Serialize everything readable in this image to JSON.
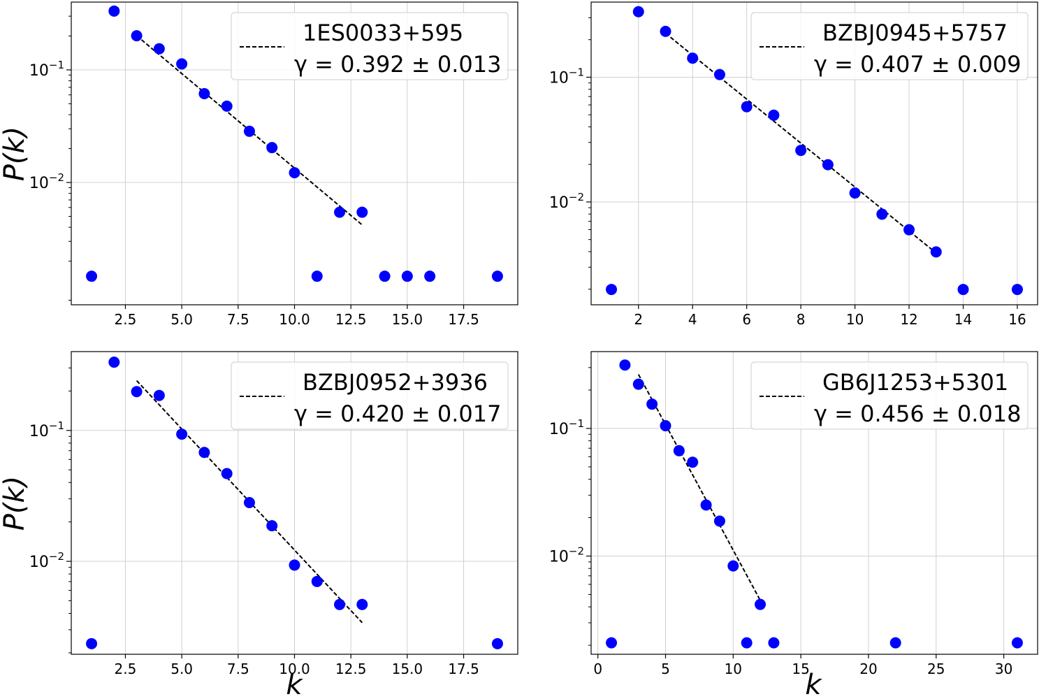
{
  "figure": {
    "xlabel": "k",
    "ylabel": "P(k)"
  },
  "chart_data": [
    {
      "type": "scatter",
      "legend_label": "1ES0033+595",
      "gamma_text": "γ = 0.392 ± 0.013",
      "legend_position": "top-right",
      "x_scale": "linear",
      "y_scale": "log",
      "xlim": [
        0.1,
        19.9
      ],
      "ylim": [
        0.00082,
        0.4
      ],
      "xticks": [
        2.5,
        5.0,
        7.5,
        10.0,
        12.5,
        15.0,
        17.5
      ],
      "xtick_labels": [
        "2.5",
        "5.0",
        "7.5",
        "10.0",
        "12.5",
        "15.0",
        "17.5"
      ],
      "yticks": [
        0.1,
        0.01
      ],
      "xlabel": "",
      "ylabel": "P(k)",
      "grid": true,
      "points": [
        [
          1,
          0.00147
        ],
        [
          2,
          0.333
        ],
        [
          3,
          0.201
        ],
        [
          4,
          0.154
        ],
        [
          5,
          0.113
        ],
        [
          6,
          0.0615
        ],
        [
          7,
          0.0476
        ],
        [
          8,
          0.0285
        ],
        [
          9,
          0.0204
        ],
        [
          10,
          0.0122
        ],
        [
          11,
          0.00147
        ],
        [
          12,
          0.00544
        ],
        [
          13,
          0.00544
        ],
        [
          14,
          0.00147
        ],
        [
          15,
          0.00147
        ],
        [
          16,
          0.00147
        ],
        [
          19,
          0.00147
        ]
      ],
      "fit_line": [
        [
          3,
          0.201
        ],
        [
          13,
          0.0042
        ]
      ]
    },
    {
      "type": "scatter",
      "legend_label": "BZBJ0945+5757",
      "gamma_text": "γ = 0.407 ± 0.009",
      "legend_position": "top-right",
      "x_scale": "linear",
      "y_scale": "log",
      "xlim": [
        0.25,
        16.75
      ],
      "ylim": [
        0.0015,
        0.4
      ],
      "xticks": [
        2,
        4,
        6,
        8,
        10,
        12,
        14,
        16
      ],
      "xtick_labels": [
        "2",
        "4",
        "6",
        "8",
        "10",
        "12",
        "14",
        "16"
      ],
      "yticks": [
        0.1,
        0.01
      ],
      "xlabel": "",
      "ylabel": "",
      "grid": true,
      "points": [
        [
          1,
          0.00199
        ],
        [
          2,
          0.335
        ],
        [
          3,
          0.233
        ],
        [
          4,
          0.142
        ],
        [
          5,
          0.105
        ],
        [
          6,
          0.058
        ],
        [
          7,
          0.0496
        ],
        [
          8,
          0.0259
        ],
        [
          9,
          0.0199
        ],
        [
          10,
          0.0118
        ],
        [
          11,
          0.00798
        ],
        [
          12,
          0.00599
        ],
        [
          13,
          0.00398
        ],
        [
          14,
          0.00199
        ],
        [
          16,
          0.00199
        ]
      ],
      "fit_line": [
        [
          3,
          0.225
        ],
        [
          13,
          0.0039
        ]
      ]
    },
    {
      "type": "scatter",
      "legend_label": "BZBJ0952+3936",
      "gamma_text": "γ = 0.420 ± 0.017",
      "legend_position": "top-right",
      "x_scale": "linear",
      "y_scale": "log",
      "xlim": [
        0.1,
        19.9
      ],
      "ylim": [
        0.00195,
        0.4
      ],
      "xticks": [
        2.5,
        5.0,
        7.5,
        10.0,
        12.5,
        15.0,
        17.5
      ],
      "xtick_labels": [
        "2.5",
        "5.0",
        "7.5",
        "10.0",
        "12.5",
        "15.0",
        "17.5"
      ],
      "yticks": [
        0.1,
        0.01
      ],
      "xlabel": "k",
      "ylabel": "P(k)",
      "grid": true,
      "points": [
        [
          1,
          0.00235
        ],
        [
          2,
          0.332
        ],
        [
          3,
          0.198
        ],
        [
          4,
          0.185
        ],
        [
          5,
          0.0936
        ],
        [
          6,
          0.0679
        ],
        [
          7,
          0.0468
        ],
        [
          8,
          0.0281
        ],
        [
          9,
          0.0187
        ],
        [
          10,
          0.00936
        ],
        [
          11,
          0.00702
        ],
        [
          12,
          0.00468
        ],
        [
          13,
          0.00468
        ],
        [
          19,
          0.00235
        ]
      ],
      "fit_line": [
        [
          3,
          0.24
        ],
        [
          13,
          0.0034
        ]
      ]
    },
    {
      "type": "scatter",
      "legend_label": "GB6J1253+5301",
      "gamma_text": "γ = 0.456 ± 0.018",
      "legend_position": "top-right",
      "x_scale": "linear",
      "y_scale": "log",
      "xlim": [
        -0.5,
        32.5
      ],
      "ylim": [
        0.0017,
        0.4
      ],
      "xticks": [
        0,
        5,
        10,
        15,
        20,
        25,
        30
      ],
      "xtick_labels": [
        "0",
        "5",
        "10",
        "15",
        "20",
        "25",
        "30"
      ],
      "yticks": [
        0.1,
        0.01
      ],
      "xlabel": "k",
      "ylabel": "",
      "grid": true,
      "points": [
        [
          1,
          0.00209
        ],
        [
          2,
          0.314
        ],
        [
          3,
          0.222
        ],
        [
          4,
          0.155
        ],
        [
          5,
          0.105
        ],
        [
          6,
          0.0669
        ],
        [
          7,
          0.0544
        ],
        [
          8,
          0.0251
        ],
        [
          9,
          0.0188
        ],
        [
          10,
          0.00837
        ],
        [
          11,
          0.00209
        ],
        [
          12,
          0.00418
        ],
        [
          13,
          0.00209
        ],
        [
          22,
          0.00209
        ],
        [
          31,
          0.00209
        ]
      ],
      "fit_line": [
        [
          3,
          0.265
        ],
        [
          12,
          0.0045
        ]
      ]
    }
  ]
}
